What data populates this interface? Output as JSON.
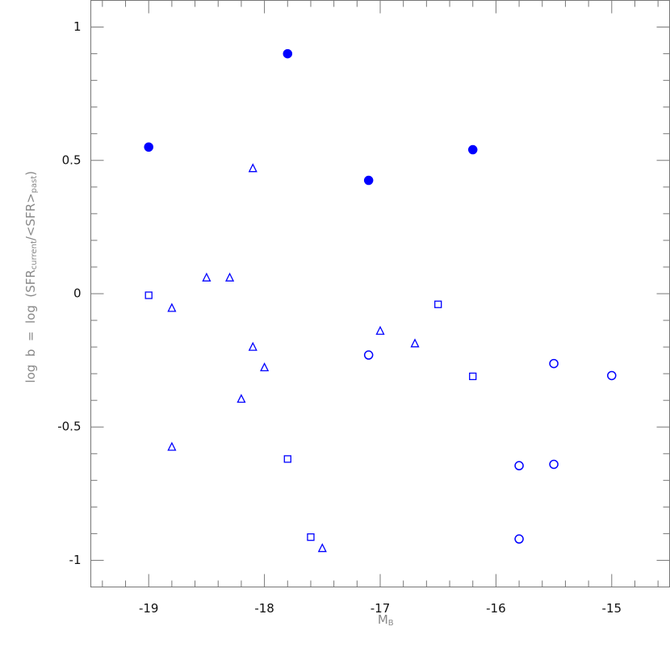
{
  "chart_data": {
    "type": "scatter",
    "xlabel": [
      "M",
      "B"
    ],
    "ylabel": [
      "log  b  =  log  (SFR",
      "current",
      "/<SFR>",
      "past",
      ")"
    ],
    "xlim": [
      -19.5,
      -14.5
    ],
    "ylim": [
      -1.1,
      1.1
    ],
    "xticks": [
      -19,
      -18,
      -17,
      -16,
      -15
    ],
    "yticks": [
      1,
      0.5,
      0,
      -0.5,
      -1
    ],
    "xminorticks": [
      -19.4,
      -19.2,
      -18.8,
      -18.6,
      -18.4,
      -18.2,
      -17.8,
      -17.6,
      -17.4,
      -17.2,
      -16.8,
      -16.6,
      -16.4,
      -16.2,
      -15.8,
      -15.6,
      -15.4,
      -15.2,
      -14.8,
      -14.6
    ],
    "yminorticks": [
      1.1,
      0.9,
      0.8,
      0.7,
      0.6,
      0.4,
      0.3,
      0.2,
      0.1,
      -0.1,
      -0.2,
      -0.3,
      -0.4,
      -0.6,
      -0.7,
      -0.8,
      -0.9,
      -1.1
    ],
    "series": [
      {
        "marker": "circle",
        "filled": true,
        "color": "#0000ff",
        "x": [
          -19,
          -17.8,
          -17.1,
          -16.2
        ],
        "values": [
          0.55,
          0.9,
          0.425,
          0.54
        ]
      },
      {
        "marker": "circle",
        "filled": false,
        "color": "#0000ff",
        "x": [
          -17.1,
          -15.5,
          -15,
          -15.8,
          -15.5,
          -15.8
        ],
        "values": [
          -0.23,
          -0.262,
          -0.307,
          -0.645,
          -0.64,
          -0.92
        ]
      },
      {
        "marker": "square",
        "filled": false,
        "color": "#0000ff",
        "x": [
          -19,
          -16.5,
          -16.2,
          -17.8,
          -17.6
        ],
        "values": [
          -0.006,
          -0.04,
          -0.31,
          -0.62,
          -0.913
        ]
      },
      {
        "marker": "triangle",
        "filled": false,
        "color": "#0000ff",
        "x": [
          -18.1,
          -18.5,
          -18.3,
          -18.8,
          -17,
          -16.7,
          -18.1,
          -18,
          -18.2,
          -18.8,
          -17.5
        ],
        "values": [
          0.47,
          0.06,
          0.06,
          -0.054,
          -0.14,
          -0.187,
          -0.2,
          -0.277,
          -0.395,
          -0.575,
          -0.955
        ]
      }
    ]
  }
}
